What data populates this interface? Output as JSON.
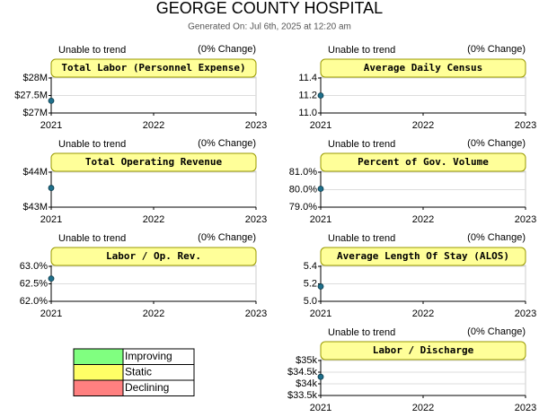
{
  "header": {
    "title": "GEORGE COUNTY HOSPITAL",
    "subtitle": "Generated On: Jul 6th, 2025 at 12:20 am"
  },
  "chart_data": [
    {
      "type": "line",
      "title": "Total Labor (Personnel Expense)",
      "note": "Unable to trend",
      "change": "(0% Change)",
      "x": [
        2021
      ],
      "values": [
        27.35
      ],
      "color": "#1f6f8b",
      "xlim": [
        2021,
        2023
      ],
      "xticks": [
        2021,
        2022,
        2023
      ],
      "ylim": [
        27,
        28
      ],
      "yticks": [
        {
          "value": 27,
          "label": "$27M"
        },
        {
          "value": 27.5,
          "label": "$27.5M"
        },
        {
          "value": 28,
          "label": "$28M"
        }
      ]
    },
    {
      "type": "line",
      "title": "Average Daily Census",
      "note": "Unable to trend",
      "change": "(0% Change)",
      "x": [
        2021
      ],
      "values": [
        11.2
      ],
      "color": "#1f6f8b",
      "xlim": [
        2021,
        2023
      ],
      "xticks": [
        2021,
        2022,
        2023
      ],
      "ylim": [
        11.0,
        11.4
      ],
      "yticks": [
        {
          "value": 11.0,
          "label": "11.0"
        },
        11.2,
        11.4
      ]
    },
    {
      "type": "line",
      "title": "Total Operating Revenue",
      "note": "Unable to trend",
      "change": "(0% Change)",
      "x": [
        2021
      ],
      "values": [
        43.55
      ],
      "color": "#1f6f8b",
      "xlim": [
        2021,
        2023
      ],
      "xticks": [
        2021,
        2022,
        2023
      ],
      "ylim": [
        43,
        44
      ],
      "yticks": [
        {
          "value": 43,
          "label": "$43M"
        },
        {
          "value": 44,
          "label": "$44M"
        }
      ]
    },
    {
      "type": "line",
      "title": "Percent of Gov. Volume",
      "note": "Unable to trend",
      "change": "(0% Change)",
      "x": [
        2021
      ],
      "values": [
        80.05
      ],
      "color": "#1f6f8b",
      "xlim": [
        2021,
        2023
      ],
      "xticks": [
        2021,
        2022,
        2023
      ],
      "ylim": [
        79,
        81
      ],
      "yticks": [
        {
          "value": 79,
          "label": "79.0%"
        },
        {
          "value": 80,
          "label": "80.0%"
        },
        {
          "value": 81,
          "label": "81.0%"
        }
      ]
    },
    {
      "type": "line",
      "title": "Labor / Op. Rev.",
      "note": "Unable to trend",
      "change": "(0% Change)",
      "x": [
        2021
      ],
      "values": [
        62.65
      ],
      "color": "#1f6f8b",
      "xlim": [
        2021,
        2023
      ],
      "xticks": [
        2021,
        2022,
        2023
      ],
      "ylim": [
        62,
        63
      ],
      "yticks": [
        {
          "value": 62,
          "label": "62.0%"
        },
        {
          "value": 62.5,
          "label": "62.5%"
        },
        {
          "value": 63,
          "label": "63.0%"
        }
      ]
    },
    {
      "type": "line",
      "title": "Average Length Of Stay (ALOS)",
      "note": "Unable to trend",
      "change": "(0% Change)",
      "x": [
        2021
      ],
      "values": [
        5.17
      ],
      "color": "#1f6f8b",
      "xlim": [
        2021,
        2023
      ],
      "xticks": [
        2021,
        2022,
        2023
      ],
      "ylim": [
        5.0,
        5.4
      ],
      "yticks": [
        {
          "value": 5.0,
          "label": "5.0"
        },
        5.2,
        5.4
      ]
    },
    {
      "type": "line",
      "title": "Labor / Discharge",
      "note": "Unable to trend",
      "change": "(0% Change)",
      "x": [
        2021
      ],
      "values": [
        34.3
      ],
      "color": "#1f6f8b",
      "xlim": [
        2021,
        2023
      ],
      "xticks": [
        2021,
        2022,
        2023
      ],
      "ylim": [
        33.5,
        35
      ],
      "yticks": [
        {
          "value": 33.5,
          "label": "$33.5k"
        },
        {
          "value": 34,
          "label": "$34k"
        },
        {
          "value": 34.5,
          "label": "$34.5k"
        },
        {
          "value": 35,
          "label": "$35k"
        }
      ]
    }
  ],
  "legend": [
    {
      "label": "Improving",
      "color": "#80ff80"
    },
    {
      "label": "Static",
      "color": "#ffff66"
    },
    {
      "label": "Declining",
      "color": "#ff8080"
    }
  ]
}
